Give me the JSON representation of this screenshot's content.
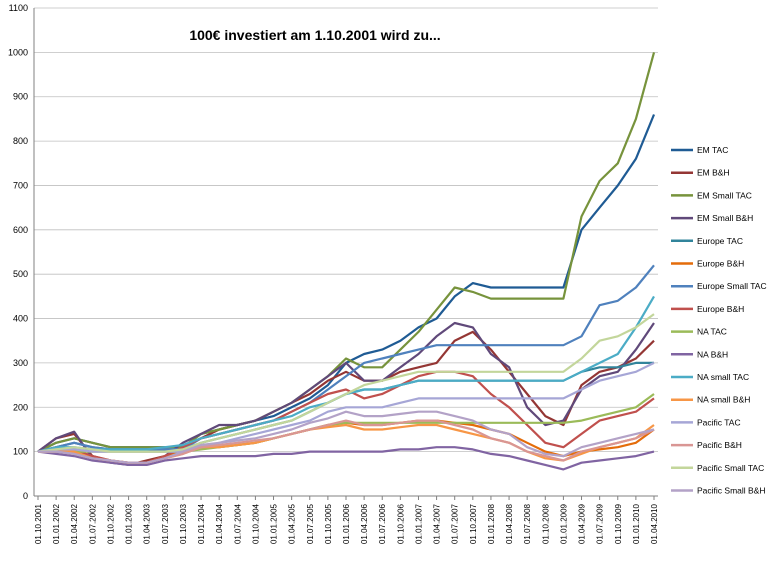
{
  "chart_data": {
    "type": "line",
    "title": "100€ investiert am 1.10.2001  wird zu...",
    "xlabel": "",
    "ylabel": "",
    "ylim": [
      0,
      1100
    ],
    "yticks": [
      0,
      100,
      200,
      300,
      400,
      500,
      600,
      700,
      800,
      900,
      1000,
      1100
    ],
    "grid": "horizontal",
    "legend": "right",
    "x_tick_labels": [
      "01.10.2001",
      "01.01.2002",
      "01.04.2002",
      "01.07.2002",
      "01.10.2002",
      "01.01.2003",
      "01.04.2003",
      "01.07.2003",
      "01.10.2003",
      "01.01.2004",
      "01.04.2004",
      "01.07.2004",
      "01.10.2004",
      "01.01.2005",
      "01.04.2005",
      "01.07.2005",
      "01.10.2005",
      "01.01.2006",
      "01.04.2006",
      "01.07.2006",
      "01.10.2006",
      "01.01.2007",
      "01.04.2007",
      "01.07.2007",
      "01.10.2007",
      "01.01.2008",
      "01.04.2008",
      "01.07.2008",
      "01.10.2008",
      "01.01.2009",
      "01.04.2009",
      "01.07.2009",
      "01.10.2009",
      "01.01.2010",
      "01.04.2010"
    ],
    "series": [
      {
        "name": "EM TAC",
        "color": "#1F5B94",
        "values": [
          100,
          120,
          130,
          120,
          110,
          110,
          110,
          110,
          110,
          140,
          150,
          160,
          170,
          180,
          200,
          220,
          250,
          300,
          320,
          330,
          350,
          380,
          400,
          450,
          480,
          470,
          470,
          470,
          470,
          470,
          600,
          650,
          700,
          760,
          860
        ]
      },
      {
        "name": "EM B&H",
        "color": "#943634",
        "values": [
          100,
          130,
          140,
          90,
          80,
          70,
          80,
          90,
          110,
          130,
          150,
          160,
          170,
          190,
          210,
          230,
          260,
          280,
          260,
          260,
          280,
          290,
          300,
          350,
          370,
          330,
          280,
          230,
          180,
          160,
          250,
          280,
          290,
          310,
          350
        ]
      },
      {
        "name": "EM Small TAC",
        "color": "#77933C",
        "values": [
          100,
          120,
          130,
          120,
          110,
          110,
          110,
          110,
          110,
          140,
          150,
          160,
          170,
          190,
          210,
          240,
          270,
          310,
          290,
          290,
          330,
          370,
          420,
          470,
          460,
          445,
          445,
          445,
          445,
          445,
          630,
          710,
          750,
          850,
          1000
        ]
      },
      {
        "name": "EM Small B&H",
        "color": "#60497A",
        "values": [
          100,
          130,
          145,
          85,
          75,
          70,
          75,
          90,
          120,
          140,
          160,
          160,
          170,
          190,
          210,
          240,
          270,
          300,
          260,
          260,
          290,
          320,
          360,
          390,
          380,
          320,
          290,
          200,
          160,
          170,
          240,
          270,
          280,
          330,
          390
        ]
      },
      {
        "name": "Europe TAC",
        "color": "#31849B",
        "values": [
          100,
          110,
          120,
          110,
          105,
          105,
          105,
          105,
          105,
          120,
          130,
          140,
          150,
          160,
          170,
          190,
          210,
          230,
          240,
          240,
          250,
          260,
          260,
          260,
          260,
          260,
          260,
          260,
          260,
          260,
          280,
          290,
          290,
          300,
          300
        ]
      },
      {
        "name": "Europe B&H",
        "color": "#E46C0A",
        "values": [
          100,
          100,
          100,
          85,
          80,
          75,
          75,
          90,
          100,
          110,
          110,
          115,
          120,
          130,
          140,
          150,
          160,
          165,
          160,
          160,
          165,
          170,
          170,
          165,
          160,
          150,
          140,
          120,
          100,
          90,
          100,
          105,
          110,
          120,
          150
        ]
      },
      {
        "name": "Europe Small TAC",
        "color": "#4F81BD",
        "values": [
          100,
          110,
          120,
          110,
          105,
          105,
          105,
          105,
          105,
          130,
          140,
          150,
          160,
          170,
          190,
          210,
          240,
          270,
          300,
          310,
          320,
          330,
          340,
          340,
          340,
          340,
          340,
          340,
          340,
          340,
          360,
          430,
          440,
          470,
          520
        ]
      },
      {
        "name": "Europe B&H",
        "color": "#C0504D",
        "values": [
          100,
          110,
          105,
          90,
          80,
          75,
          75,
          90,
          110,
          130,
          140,
          150,
          160,
          170,
          190,
          210,
          230,
          240,
          220,
          230,
          250,
          270,
          280,
          280,
          270,
          230,
          200,
          160,
          120,
          110,
          140,
          170,
          180,
          190,
          220
        ]
      },
      {
        "name": "NA TAC",
        "color": "#9BBB59",
        "values": [
          100,
          100,
          100,
          100,
          100,
          100,
          100,
          100,
          100,
          105,
          110,
          115,
          120,
          130,
          140,
          150,
          160,
          165,
          165,
          165,
          165,
          165,
          165,
          165,
          165,
          165,
          165,
          165,
          165,
          165,
          170,
          180,
          190,
          200,
          230
        ]
      },
      {
        "name": "NA B&H",
        "color": "#8064A2",
        "values": [
          100,
          95,
          90,
          80,
          75,
          70,
          70,
          80,
          85,
          90,
          90,
          90,
          90,
          95,
          95,
          100,
          100,
          100,
          100,
          100,
          105,
          105,
          110,
          110,
          105,
          95,
          90,
          80,
          70,
          60,
          75,
          80,
          85,
          90,
          100
        ]
      },
      {
        "name": "NA small  TAC",
        "color": "#4BACC6",
        "values": [
          100,
          110,
          110,
          105,
          105,
          105,
          105,
          110,
          115,
          130,
          140,
          150,
          160,
          170,
          180,
          200,
          210,
          230,
          240,
          240,
          250,
          260,
          260,
          260,
          260,
          260,
          260,
          260,
          260,
          260,
          280,
          300,
          320,
          380,
          450
        ]
      },
      {
        "name": "NA small  B&H",
        "color": "#F79646",
        "values": [
          100,
          100,
          100,
          85,
          80,
          75,
          75,
          85,
          95,
          110,
          110,
          115,
          120,
          130,
          140,
          150,
          155,
          160,
          150,
          150,
          155,
          160,
          160,
          150,
          140,
          130,
          120,
          100,
          85,
          80,
          95,
          110,
          120,
          130,
          160
        ]
      },
      {
        "name": "Pacific TAC",
        "color": "#A6A6D6",
        "values": [
          100,
          105,
          105,
          100,
          100,
          100,
          100,
          100,
          100,
          110,
          120,
          130,
          140,
          150,
          160,
          170,
          190,
          200,
          200,
          200,
          210,
          220,
          220,
          220,
          220,
          220,
          220,
          220,
          220,
          220,
          240,
          260,
          270,
          280,
          300
        ]
      },
      {
        "name": "Pacific B&H",
        "color": "#D99694",
        "values": [
          100,
          100,
          95,
          85,
          80,
          75,
          75,
          85,
          95,
          110,
          115,
          120,
          125,
          130,
          140,
          150,
          160,
          170,
          160,
          160,
          165,
          170,
          170,
          160,
          150,
          130,
          120,
          100,
          90,
          80,
          100,
          110,
          120,
          130,
          150
        ]
      },
      {
        "name": "Pacific Small TAC",
        "color": "#C3D69B",
        "values": [
          100,
          105,
          110,
          105,
          100,
          100,
          100,
          100,
          105,
          120,
          130,
          140,
          150,
          160,
          170,
          190,
          210,
          230,
          250,
          260,
          270,
          280,
          280,
          280,
          280,
          280,
          280,
          280,
          280,
          280,
          310,
          350,
          360,
          380,
          410
        ]
      },
      {
        "name": "Pacific Small  B&H",
        "color": "#B3A2C7",
        "values": [
          100,
          100,
          95,
          85,
          80,
          75,
          75,
          85,
          100,
          115,
          120,
          125,
          130,
          140,
          150,
          165,
          175,
          190,
          180,
          180,
          185,
          190,
          190,
          180,
          170,
          150,
          140,
          110,
          95,
          90,
          110,
          120,
          130,
          140,
          150
        ]
      }
    ]
  }
}
